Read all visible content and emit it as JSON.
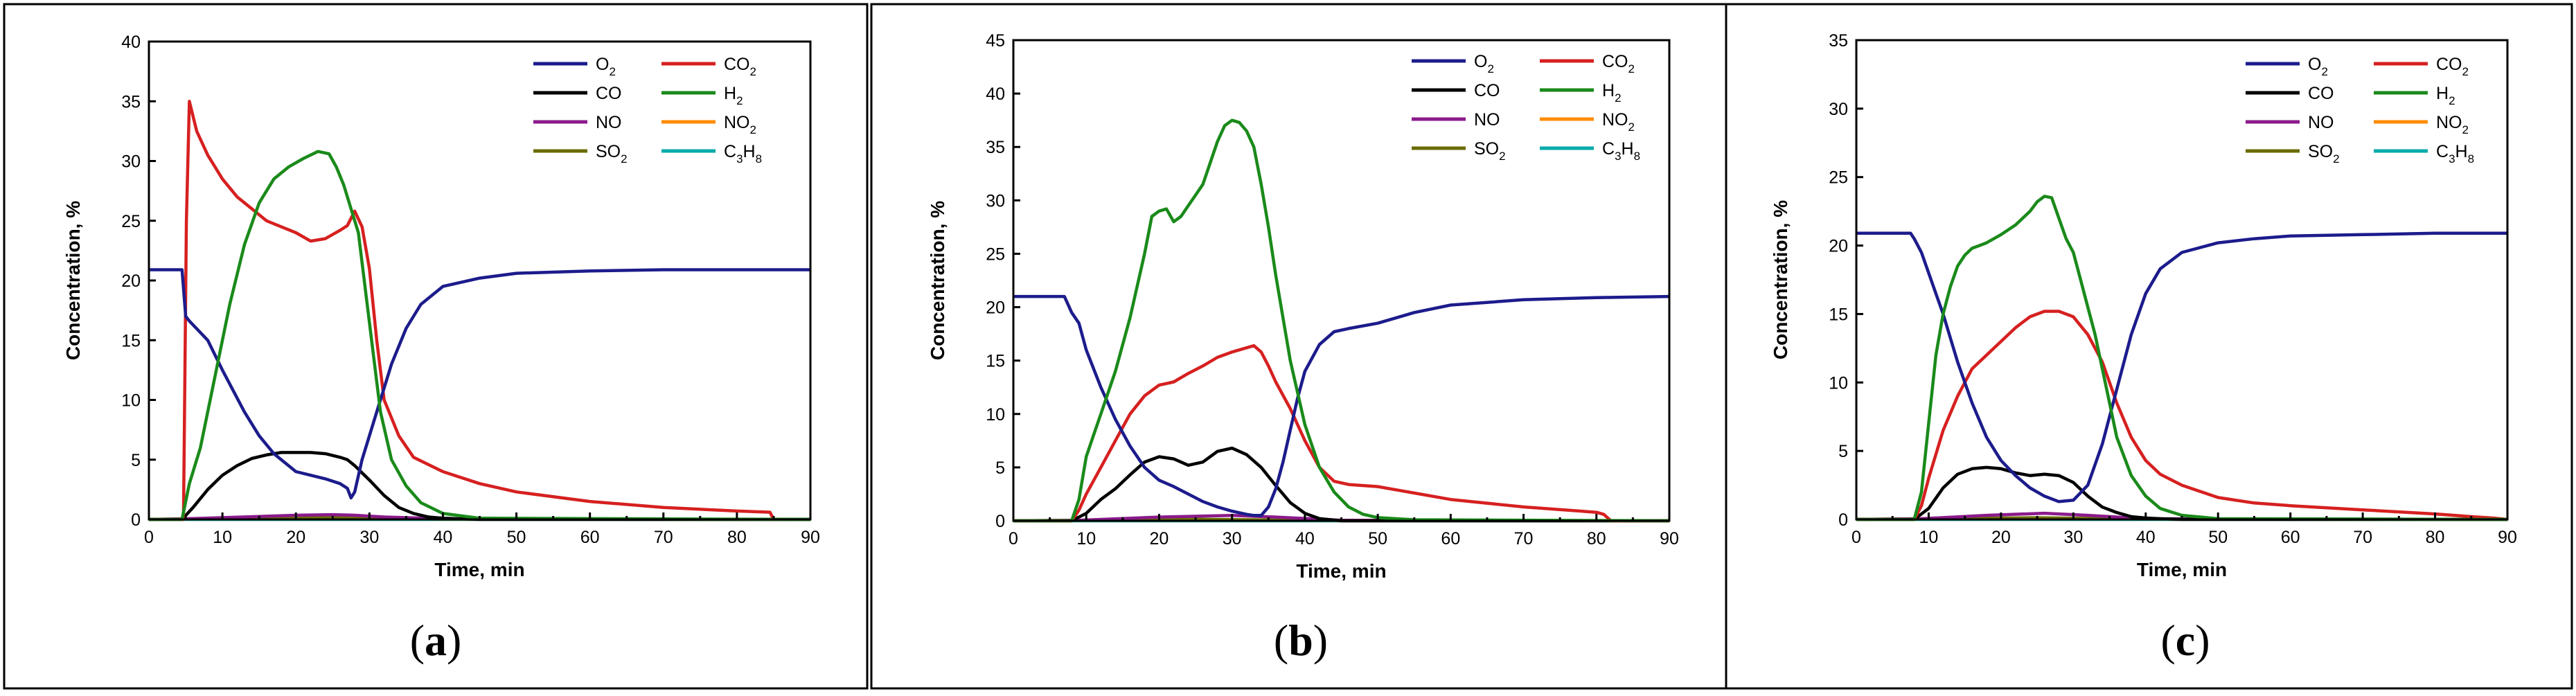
{
  "figure": {
    "panel_labels": [
      "a",
      "b",
      "c"
    ]
  },
  "legend": [
    {
      "key": "O2",
      "base": "O",
      "sub": "2",
      "color": "#1c1c8c"
    },
    {
      "key": "CO2",
      "base": "CO",
      "sub": "2",
      "color": "#d62020"
    },
    {
      "key": "CO",
      "base": "CO",
      "sub": "",
      "color": "#000000"
    },
    {
      "key": "H2",
      "base": "H",
      "sub": "2",
      "color": "#1a8a1a"
    },
    {
      "key": "NO",
      "base": "NO",
      "sub": "",
      "color": "#8b1a8b"
    },
    {
      "key": "NO2",
      "base": "NO",
      "sub": "2",
      "color": "#ff8c00"
    },
    {
      "key": "SO2",
      "base": "SO",
      "sub": "2",
      "color": "#6b6b00"
    },
    {
      "key": "C3H8",
      "base": "C",
      "sub": "3",
      "base2": "H",
      "sub2": "8",
      "color": "#00aaaa"
    }
  ],
  "chart_data": [
    {
      "type": "line",
      "panel": "a",
      "xlabel": "Time, min",
      "ylabel": "Concentration, %",
      "xlim": [
        0,
        90
      ],
      "ylim": [
        0,
        40
      ],
      "xticks": [
        0,
        10,
        20,
        30,
        40,
        50,
        60,
        70,
        80,
        90
      ],
      "yticks": [
        0,
        5,
        10,
        15,
        20,
        25,
        30,
        35,
        40
      ],
      "series": [
        {
          "name": "O2",
          "x": [
            0,
            4.5,
            5,
            5.5,
            8,
            10,
            13,
            15,
            17,
            20,
            22,
            24,
            26,
            27,
            27.5,
            28,
            29,
            31,
            33,
            35,
            37,
            40,
            45,
            50,
            60,
            70,
            80,
            90
          ],
          "y": [
            20.9,
            20.9,
            17,
            16.6,
            15,
            12.5,
            9,
            7,
            5.5,
            4,
            3.7,
            3.4,
            3,
            2.6,
            1.8,
            2.3,
            5,
            9,
            13,
            16,
            18,
            19.5,
            20.2,
            20.6,
            20.8,
            20.9,
            20.9,
            20.9
          ]
        },
        {
          "name": "CO2",
          "x": [
            0,
            4.7,
            5.1,
            5.5,
            6.5,
            8,
            10,
            12,
            14,
            16,
            18,
            20,
            22,
            24,
            26,
            27,
            28,
            29,
            30,
            31,
            32,
            34,
            36,
            40,
            45,
            50,
            60,
            70,
            80,
            84.5,
            85
          ],
          "y": [
            0,
            0,
            25,
            35,
            32.5,
            30.5,
            28.5,
            27,
            26,
            25,
            24.5,
            24,
            23.3,
            23.5,
            24.2,
            24.6,
            25.8,
            24.5,
            21,
            15,
            10,
            7,
            5.2,
            4,
            3,
            2.3,
            1.5,
            1.0,
            0.7,
            0.6,
            0
          ]
        },
        {
          "name": "CO",
          "x": [
            0,
            4.5,
            6,
            8,
            10,
            12,
            14,
            16,
            18,
            20,
            22,
            24,
            26,
            27,
            28,
            30,
            32,
            34,
            36,
            38,
            40,
            45,
            90
          ],
          "y": [
            0,
            0,
            1,
            2.5,
            3.7,
            4.5,
            5.1,
            5.4,
            5.6,
            5.6,
            5.6,
            5.5,
            5.2,
            5.0,
            4.5,
            3.3,
            2.0,
            1.0,
            0.5,
            0.2,
            0.1,
            0,
            0
          ]
        },
        {
          "name": "H2",
          "x": [
            0,
            4.5,
            5.5,
            7,
            9,
            11,
            13,
            15,
            17,
            19,
            21,
            23,
            24.5,
            25.5,
            26.5,
            27.5,
            28.5,
            29.5,
            30.5,
            31.5,
            33,
            35,
            37,
            40,
            45,
            90
          ],
          "y": [
            0,
            0,
            3,
            6,
            12,
            18,
            23,
            26.5,
            28.5,
            29.5,
            30.2,
            30.8,
            30.6,
            29.5,
            28,
            26,
            24,
            19,
            14,
            9,
            5,
            2.8,
            1.4,
            0.5,
            0.1,
            0
          ]
        },
        {
          "name": "NO",
          "x": [
            0,
            5,
            15,
            20,
            25,
            28,
            32,
            40,
            90
          ],
          "y": [
            0,
            0.05,
            0.25,
            0.35,
            0.4,
            0.35,
            0.2,
            0.05,
            0
          ]
        },
        {
          "name": "NO2",
          "x": [
            0,
            90
          ],
          "y": [
            0,
            0
          ]
        },
        {
          "name": "SO2",
          "x": [
            0,
            5,
            20,
            30,
            40,
            90
          ],
          "y": [
            0,
            0.05,
            0.15,
            0.12,
            0.03,
            0
          ]
        },
        {
          "name": "C3H8",
          "x": [
            0,
            90
          ],
          "y": [
            0,
            0
          ]
        }
      ]
    },
    {
      "type": "line",
      "panel": "b",
      "xlabel": "Time, min",
      "ylabel": "Concentration, %",
      "xlim": [
        0,
        90
      ],
      "ylim": [
        0,
        45
      ],
      "xticks": [
        0,
        10,
        20,
        30,
        40,
        50,
        60,
        70,
        80,
        90
      ],
      "yticks": [
        0,
        5,
        10,
        15,
        20,
        25,
        30,
        35,
        40,
        45
      ],
      "series": [
        {
          "name": "O2",
          "x": [
            0,
            7,
            8,
            9,
            10,
            12,
            14,
            16,
            18,
            20,
            22,
            24,
            26,
            28,
            30,
            32,
            33,
            34,
            35,
            36,
            37,
            38,
            39,
            40,
            42,
            44,
            46,
            50,
            55,
            60,
            70,
            80,
            90
          ],
          "y": [
            21,
            21,
            19.5,
            18.5,
            16,
            12.5,
            9.5,
            7,
            5,
            3.8,
            3.2,
            2.5,
            1.8,
            1.3,
            0.9,
            0.6,
            0.5,
            0.5,
            1.3,
            3,
            5.5,
            8.5,
            11.5,
            14,
            16.5,
            17.7,
            18,
            18.5,
            19.5,
            20.2,
            20.7,
            20.9,
            21
          ]
        },
        {
          "name": "CO2",
          "x": [
            0,
            8,
            9,
            10,
            12,
            14,
            16,
            18,
            20,
            22,
            24,
            26,
            28,
            30,
            32,
            33,
            34,
            35,
            36,
            38,
            40,
            42,
            44,
            46,
            50,
            60,
            70,
            80,
            81,
            82,
            90
          ],
          "y": [
            0,
            0,
            1,
            2.5,
            5,
            7.5,
            10,
            11.7,
            12.7,
            13,
            13.8,
            14.5,
            15.3,
            15.8,
            16.2,
            16.4,
            15.8,
            14.5,
            13,
            10.5,
            7.5,
            5,
            3.7,
            3.4,
            3.2,
            2.0,
            1.3,
            0.8,
            0.6,
            0,
            0
          ]
        },
        {
          "name": "CO",
          "x": [
            0,
            8,
            10,
            12,
            14,
            16,
            18,
            20,
            22,
            24,
            26,
            28,
            30,
            32,
            34,
            36,
            38,
            40,
            42,
            45,
            90
          ],
          "y": [
            0,
            0,
            0.7,
            2,
            3,
            4.3,
            5.5,
            6,
            5.8,
            5.2,
            5.5,
            6.5,
            6.8,
            6.2,
            5,
            3.3,
            1.7,
            0.7,
            0.2,
            0,
            0
          ]
        },
        {
          "name": "H2",
          "x": [
            0,
            8,
            9,
            10,
            11,
            12,
            14,
            16,
            18,
            19,
            20,
            21,
            22,
            23,
            24,
            25,
            26,
            27,
            28,
            29,
            30,
            31,
            32,
            33,
            34,
            35,
            36,
            38,
            40,
            42,
            44,
            46,
            48,
            50,
            55,
            90
          ],
          "y": [
            0,
            0,
            2,
            6,
            8,
            10,
            14,
            19,
            25,
            28.5,
            29,
            29.2,
            28,
            28.5,
            29.5,
            30.5,
            31.5,
            33.5,
            35.5,
            37,
            37.5,
            37.3,
            36.5,
            35,
            31.5,
            27.5,
            23,
            15,
            9,
            5,
            2.7,
            1.3,
            0.6,
            0.3,
            0.1,
            0
          ]
        },
        {
          "name": "NO",
          "x": [
            0,
            9,
            20,
            30,
            36,
            45,
            90
          ],
          "y": [
            0,
            0.05,
            0.35,
            0.5,
            0.35,
            0.05,
            0
          ]
        },
        {
          "name": "NO2",
          "x": [
            0,
            90
          ],
          "y": [
            0,
            0
          ]
        },
        {
          "name": "SO2",
          "x": [
            0,
            9,
            25,
            40,
            90
          ],
          "y": [
            0,
            0.05,
            0.15,
            0.05,
            0
          ]
        },
        {
          "name": "C3H8",
          "x": [
            0,
            90
          ],
          "y": [
            0,
            0
          ]
        }
      ]
    },
    {
      "type": "line",
      "panel": "c",
      "xlabel": "Time, min",
      "ylabel": "Concentration, %",
      "xlim": [
        0,
        90
      ],
      "ylim": [
        0,
        35
      ],
      "xticks": [
        0,
        10,
        20,
        30,
        40,
        50,
        60,
        70,
        80,
        90
      ],
      "yticks": [
        0,
        5,
        10,
        15,
        20,
        25,
        30,
        35
      ],
      "series": [
        {
          "name": "O2",
          "x": [
            0,
            7.5,
            8,
            9,
            10,
            12,
            14,
            16,
            18,
            20,
            22,
            24,
            26,
            28,
            30,
            32,
            34,
            36,
            38,
            40,
            42,
            45,
            50,
            55,
            60,
            70,
            80,
            90
          ],
          "y": [
            20.9,
            20.9,
            20.5,
            19.5,
            18,
            15,
            11.5,
            8.5,
            6,
            4.3,
            3.2,
            2.3,
            1.7,
            1.3,
            1.4,
            2.5,
            5.5,
            9.5,
            13.5,
            16.5,
            18.3,
            19.5,
            20.2,
            20.5,
            20.7,
            20.8,
            20.9,
            20.9
          ]
        },
        {
          "name": "CO2",
          "x": [
            0,
            8,
            9,
            10,
            12,
            14,
            16,
            18,
            20,
            22,
            24,
            26,
            28,
            30,
            32,
            34,
            36,
            38,
            40,
            42,
            45,
            50,
            55,
            60,
            70,
            80,
            85,
            88,
            90
          ],
          "y": [
            0,
            0,
            1,
            3,
            6.5,
            9,
            11,
            12,
            13,
            14,
            14.8,
            15.2,
            15.2,
            14.8,
            13.5,
            11.5,
            8.5,
            6,
            4.3,
            3.3,
            2.5,
            1.6,
            1.2,
            1.0,
            0.7,
            0.4,
            0.2,
            0.1,
            0
          ]
        },
        {
          "name": "CO",
          "x": [
            0,
            8,
            10,
            12,
            14,
            16,
            18,
            20,
            22,
            24,
            26,
            28,
            30,
            32,
            34,
            36,
            38,
            40,
            42,
            45,
            90
          ],
          "y": [
            0,
            0,
            0.8,
            2.3,
            3.3,
            3.7,
            3.8,
            3.7,
            3.4,
            3.2,
            3.3,
            3.2,
            2.7,
            1.7,
            0.9,
            0.5,
            0.2,
            0.1,
            0.05,
            0,
            0
          ]
        },
        {
          "name": "H2",
          "x": [
            0,
            8,
            9,
            10,
            11,
            12,
            13,
            14,
            15,
            16,
            17,
            18,
            19,
            20,
            22,
            24,
            25,
            26,
            27,
            28,
            29,
            30,
            31,
            32,
            33,
            34,
            35,
            36,
            38,
            40,
            42,
            45,
            50,
            90
          ],
          "y": [
            0,
            0,
            2,
            7,
            12,
            15,
            17,
            18.5,
            19.3,
            19.8,
            20,
            20.2,
            20.5,
            20.8,
            21.5,
            22.5,
            23.2,
            23.6,
            23.5,
            22,
            20.5,
            19.5,
            17.5,
            15.5,
            13.5,
            11,
            8.5,
            6,
            3.2,
            1.7,
            0.8,
            0.3,
            0.05,
            0
          ]
        },
        {
          "name": "NO",
          "x": [
            0,
            9,
            18,
            26,
            32,
            40,
            90
          ],
          "y": [
            0,
            0.05,
            0.3,
            0.45,
            0.3,
            0.05,
            0
          ]
        },
        {
          "name": "NO2",
          "x": [
            0,
            90
          ],
          "y": [
            0,
            0
          ]
        },
        {
          "name": "SO2",
          "x": [
            0,
            9,
            25,
            38,
            90
          ],
          "y": [
            0,
            0.05,
            0.12,
            0.04,
            0
          ]
        },
        {
          "name": "C3H8",
          "x": [
            0,
            90
          ],
          "y": [
            0,
            0
          ]
        }
      ]
    }
  ]
}
